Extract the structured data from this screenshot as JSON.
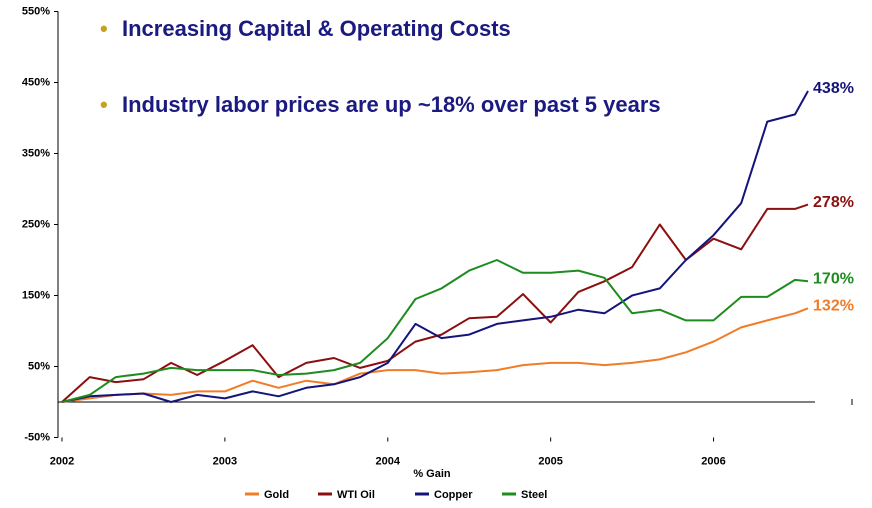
{
  "chart_data": {
    "type": "line",
    "annotations": [
      "Increasing Capital & Operating Costs",
      "Industry labor prices are up ~18% over past 5 years"
    ],
    "x_label": "% Gain",
    "x": [
      2002.0,
      2002.17,
      2002.33,
      2002.5,
      2002.67,
      2002.83,
      2003.0,
      2003.17,
      2003.33,
      2003.5,
      2003.67,
      2003.83,
      2004.0,
      2004.17,
      2004.33,
      2004.5,
      2004.67,
      2004.83,
      2005.0,
      2005.17,
      2005.33,
      2005.5,
      2005.67,
      2005.83,
      2006.0,
      2006.17,
      2006.33,
      2006.5,
      2006.58
    ],
    "series": [
      {
        "name": "Gold",
        "color": "#f07c28",
        "end_label": "132%",
        "values": [
          0,
          5,
          10,
          12,
          10,
          15,
          15,
          30,
          20,
          30,
          25,
          40,
          45,
          45,
          40,
          42,
          45,
          52,
          55,
          55,
          52,
          55,
          60,
          70,
          85,
          105,
          115,
          125,
          132
        ]
      },
      {
        "name": "WTI Oil",
        "color": "#8b0f0f",
        "end_label": "278%",
        "values": [
          0,
          35,
          28,
          32,
          55,
          38,
          58,
          80,
          35,
          55,
          62,
          48,
          58,
          85,
          95,
          118,
          120,
          152,
          112,
          155,
          170,
          190,
          250,
          200,
          230,
          215,
          272,
          272,
          278
        ]
      },
      {
        "name": "Copper",
        "color": "#14147a",
        "end_label": "438%",
        "values": [
          0,
          8,
          10,
          12,
          0,
          10,
          5,
          15,
          8,
          20,
          25,
          35,
          55,
          110,
          90,
          95,
          110,
          115,
          120,
          130,
          125,
          150,
          160,
          200,
          235,
          280,
          395,
          405,
          438
        ]
      },
      {
        "name": "Steel",
        "color": "#1e8c1e",
        "end_label": "170%",
        "values": [
          0,
          10,
          35,
          40,
          48,
          45,
          45,
          45,
          38,
          40,
          45,
          55,
          90,
          145,
          160,
          185,
          200,
          182,
          182,
          185,
          175,
          125,
          130,
          115,
          115,
          148,
          148,
          172,
          170
        ]
      }
    ],
    "xlim": [
      2002,
      2006.85
    ],
    "xticks": [
      2002,
      2003,
      2004,
      2005,
      2006
    ],
    "ylim": [
      -50,
      550
    ],
    "yticks": [
      {
        "value": -50,
        "label": "-50%"
      },
      {
        "value": 50,
        "label": "50%"
      },
      {
        "value": 150,
        "label": "150%"
      },
      {
        "value": 250,
        "label": "250%"
      },
      {
        "value": 350,
        "label": "350%"
      },
      {
        "value": 450,
        "label": "450%"
      },
      {
        "value": 550,
        "label": "550%"
      }
    ],
    "grid": false
  }
}
